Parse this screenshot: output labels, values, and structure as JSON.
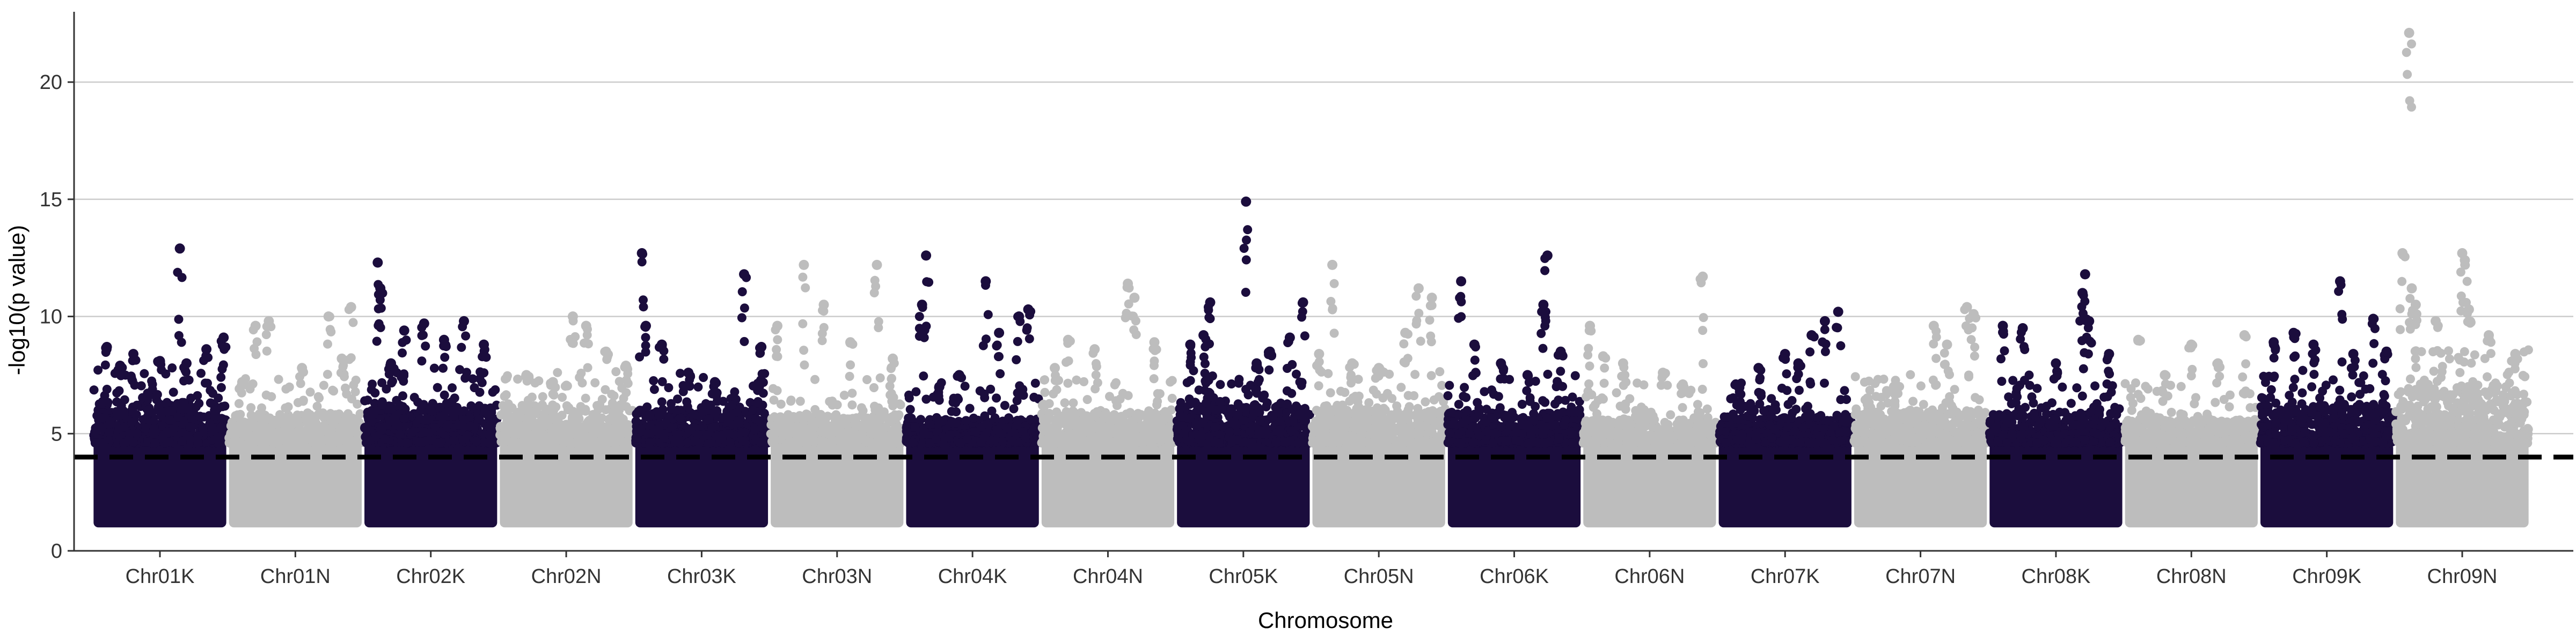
{
  "chart_data": {
    "type": "scatter",
    "subtype": "manhattan",
    "title": "",
    "xlabel": "Chromosome",
    "ylabel": "-log10(p value)",
    "ylim": [
      0,
      23
    ],
    "y_ticks": [
      0,
      5,
      10,
      15,
      20
    ],
    "grid": "horizontal major lines",
    "legend": "none",
    "threshold": 4,
    "colors": {
      "dark": "#1b0d3d",
      "light": "#bdbdbd",
      "grid": "#cccccc",
      "threshold": "#000000"
    },
    "categories": [
      "Chr01K",
      "Chr01N",
      "Chr02K",
      "Chr02N",
      "Chr03K",
      "Chr03N",
      "Chr04K",
      "Chr04N",
      "Chr05K",
      "Chr05N",
      "Chr06K",
      "Chr06N",
      "Chr07K",
      "Chr07N",
      "Chr08K",
      "Chr08N",
      "Chr09K",
      "Chr09N"
    ],
    "chromosomes": [
      {
        "name": "Chr01K",
        "color": "dark",
        "dense_top": 6.3,
        "top_hits": [
          [
            0.65,
            12.9
          ],
          [
            0.1,
            8.7
          ],
          [
            0.3,
            8.4
          ],
          [
            0.5,
            8.1
          ],
          [
            0.85,
            8.6
          ],
          [
            0.98,
            9.1
          ],
          [
            0.2,
            7.9
          ],
          [
            0.7,
            8.0
          ]
        ]
      },
      {
        "name": "Chr01N",
        "color": "light",
        "dense_top": 5.8,
        "top_hits": [
          [
            0.2,
            9.6
          ],
          [
            0.3,
            9.8
          ],
          [
            0.75,
            10.0
          ],
          [
            0.92,
            10.4
          ],
          [
            0.55,
            7.8
          ],
          [
            0.85,
            8.2
          ],
          [
            0.1,
            7.2
          ]
        ]
      },
      {
        "name": "Chr02K",
        "color": "dark",
        "dense_top": 6.2,
        "top_hits": [
          [
            0.1,
            12.3
          ],
          [
            0.12,
            11.2
          ],
          [
            0.3,
            9.4
          ],
          [
            0.45,
            9.7
          ],
          [
            0.6,
            9.0
          ],
          [
            0.75,
            9.8
          ],
          [
            0.9,
            8.8
          ],
          [
            0.2,
            8.0
          ]
        ]
      },
      {
        "name": "Chr02N",
        "color": "light",
        "dense_top": 6.2,
        "top_hits": [
          [
            0.55,
            10.0
          ],
          [
            0.65,
            9.6
          ],
          [
            0.2,
            7.5
          ],
          [
            0.8,
            8.5
          ],
          [
            0.95,
            7.9
          ],
          [
            0.4,
            7.2
          ]
        ]
      },
      {
        "name": "Chr03K",
        "color": "dark",
        "dense_top": 6.0,
        "top_hits": [
          [
            0.05,
            12.7
          ],
          [
            0.82,
            11.8
          ],
          [
            0.08,
            9.6
          ],
          [
            0.2,
            8.8
          ],
          [
            0.95,
            8.7
          ],
          [
            0.4,
            7.6
          ],
          [
            0.6,
            7.2
          ]
        ]
      },
      {
        "name": "Chr03N",
        "color": "light",
        "dense_top": 5.8,
        "top_hits": [
          [
            0.25,
            12.2
          ],
          [
            0.8,
            12.2
          ],
          [
            0.4,
            10.5
          ],
          [
            0.6,
            8.9
          ],
          [
            0.05,
            9.6
          ],
          [
            0.92,
            8.2
          ]
        ]
      },
      {
        "name": "Chr04K",
        "color": "dark",
        "dense_top": 5.6,
        "top_hits": [
          [
            0.15,
            12.6
          ],
          [
            0.6,
            11.5
          ],
          [
            0.12,
            10.5
          ],
          [
            0.85,
            10.0
          ],
          [
            0.92,
            10.3
          ],
          [
            0.7,
            9.3
          ],
          [
            0.4,
            7.5
          ],
          [
            0.25,
            7.0
          ]
        ]
      },
      {
        "name": "Chr04N",
        "color": "light",
        "dense_top": 5.9,
        "top_hits": [
          [
            0.65,
            11.4
          ],
          [
            0.7,
            10.8
          ],
          [
            0.2,
            9.0
          ],
          [
            0.4,
            8.6
          ],
          [
            0.85,
            8.9
          ],
          [
            0.1,
            7.8
          ]
        ]
      },
      {
        "name": "Chr05K",
        "color": "dark",
        "dense_top": 6.3,
        "top_hits": [
          [
            0.52,
            14.9
          ],
          [
            0.95,
            10.6
          ],
          [
            0.25,
            10.6
          ],
          [
            0.85,
            9.1
          ],
          [
            0.7,
            8.5
          ],
          [
            0.1,
            8.8
          ],
          [
            0.2,
            9.2
          ],
          [
            0.6,
            8.0
          ]
        ]
      },
      {
        "name": "Chr05N",
        "color": "light",
        "dense_top": 6.1,
        "top_hits": [
          [
            0.15,
            12.2
          ],
          [
            0.8,
            11.2
          ],
          [
            0.9,
            10.8
          ],
          [
            0.7,
            9.3
          ],
          [
            0.3,
            8.0
          ],
          [
            0.5,
            7.8
          ],
          [
            0.05,
            8.4
          ]
        ]
      },
      {
        "name": "Chr06K",
        "color": "dark",
        "dense_top": 5.9,
        "top_hits": [
          [
            0.1,
            11.5
          ],
          [
            0.75,
            12.6
          ],
          [
            0.72,
            10.5
          ],
          [
            0.2,
            8.8
          ],
          [
            0.4,
            8.0
          ],
          [
            0.85,
            8.5
          ],
          [
            0.6,
            7.5
          ]
        ]
      },
      {
        "name": "Chr06N",
        "color": "light",
        "dense_top": 5.6,
        "top_hits": [
          [
            0.05,
            9.6
          ],
          [
            0.9,
            11.7
          ],
          [
            0.3,
            8.0
          ],
          [
            0.6,
            7.6
          ],
          [
            0.75,
            7.1
          ],
          [
            0.15,
            8.3
          ]
        ]
      },
      {
        "name": "Chr07K",
        "color": "dark",
        "dense_top": 5.7,
        "top_hits": [
          [
            0.8,
            9.8
          ],
          [
            0.9,
            10.2
          ],
          [
            0.7,
            9.2
          ],
          [
            0.3,
            7.8
          ],
          [
            0.5,
            8.4
          ],
          [
            0.6,
            8.0
          ],
          [
            0.15,
            7.0
          ]
        ]
      },
      {
        "name": "Chr07N",
        "color": "light",
        "dense_top": 6.0,
        "top_hits": [
          [
            0.6,
            9.6
          ],
          [
            0.85,
            10.4
          ],
          [
            0.9,
            10.1
          ],
          [
            0.3,
            7.0
          ],
          [
            0.7,
            8.8
          ],
          [
            0.1,
            6.5
          ]
        ]
      },
      {
        "name": "Chr08K",
        "color": "dark",
        "dense_top": 5.9,
        "top_hits": [
          [
            0.72,
            11.8
          ],
          [
            0.7,
            11.0
          ],
          [
            0.1,
            9.6
          ],
          [
            0.25,
            9.5
          ],
          [
            0.75,
            9.8
          ],
          [
            0.5,
            8.0
          ],
          [
            0.9,
            8.4
          ]
        ]
      },
      {
        "name": "Chr08N",
        "color": "light",
        "dense_top": 5.6,
        "top_hits": [
          [
            0.1,
            9.0
          ],
          [
            0.5,
            8.8
          ],
          [
            0.9,
            9.2
          ],
          [
            0.7,
            8.0
          ],
          [
            0.3,
            7.5
          ]
        ]
      },
      {
        "name": "Chr09K",
        "color": "dark",
        "dense_top": 6.2,
        "top_hits": [
          [
            0.6,
            11.5
          ],
          [
            0.85,
            9.9
          ],
          [
            0.1,
            8.9
          ],
          [
            0.25,
            9.3
          ],
          [
            0.4,
            8.8
          ],
          [
            0.7,
            8.4
          ],
          [
            0.95,
            8.5
          ]
        ]
      },
      {
        "name": "Chr09N",
        "color": "light",
        "dense_top": 7.0,
        "top_hits": [
          [
            0.1,
            22.1
          ],
          [
            0.05,
            12.7
          ],
          [
            0.5,
            12.7
          ],
          [
            0.52,
            12.4
          ],
          [
            0.12,
            11.2
          ],
          [
            0.15,
            10.5
          ],
          [
            0.55,
            10.3
          ],
          [
            0.3,
            9.8
          ],
          [
            0.7,
            9.2
          ],
          [
            0.9,
            8.4
          ]
        ]
      }
    ]
  }
}
